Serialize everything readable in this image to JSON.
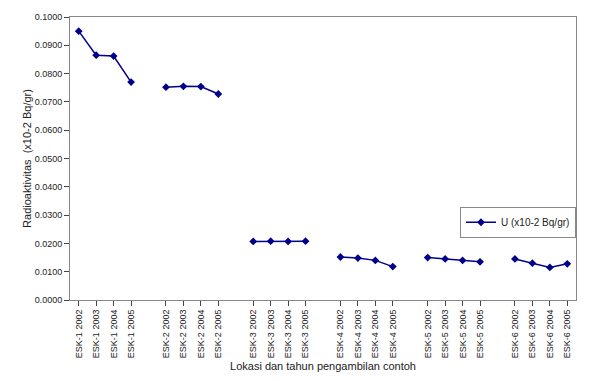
{
  "chart_data": {
    "type": "line",
    "categories": [
      "ESK-1 2002",
      "ESK-1 2003",
      "ESK-1 2004",
      "ESK-1 2005",
      null,
      "ESK-2 2002",
      "ESK-2 2003",
      "ESK-2 2004",
      "ESK-2 2005",
      null,
      "ESK-3 2002",
      "ESK-3 2003",
      "ESK-3 2004",
      "ESK-3 2005",
      null,
      "ESK-4 2002",
      "ESK-4 2003",
      "ESK-4 2004",
      "ESK-4 2005",
      null,
      "ESK-5 2002",
      "ESK-5 2003",
      "ESK-5 2004",
      "ESK-5 2005",
      null,
      "ESK-6 2002",
      "ESK-6 2003",
      "ESK-6 2004",
      "ESK-6 2005"
    ],
    "series": [
      {
        "name": "U (x10-2 Bq/gr)",
        "color": "#00008B",
        "marker": "diamond",
        "line_style": "solid",
        "values": [
          0.095,
          0.0865,
          0.0862,
          0.077,
          null,
          0.0752,
          0.0755,
          0.0754,
          0.0728,
          null,
          0.0207,
          0.0208,
          0.0207,
          0.0208,
          null,
          0.0152,
          0.0148,
          0.014,
          0.0118,
          null,
          0.015,
          0.0145,
          0.014,
          0.0135,
          null,
          0.0145,
          0.013,
          0.0115,
          0.0128
        ]
      }
    ],
    "xlabel": "Lokasi dan tahun pengambilan contoh",
    "ylabel": "Radioaktivitas  (x10-2 Bq/gr)",
    "ylim": [
      0.0,
      0.1
    ],
    "yticks": [
      {
        "value": 0.0,
        "label": "0.0000"
      },
      {
        "value": 0.01,
        "label": "0.0100"
      },
      {
        "value": 0.02,
        "label": "0.0200"
      },
      {
        "value": 0.03,
        "label": "0.0300"
      },
      {
        "value": 0.04,
        "label": "0.0400"
      },
      {
        "value": 0.05,
        "label": "0.0500"
      },
      {
        "value": 0.06,
        "label": "0.0600"
      },
      {
        "value": 0.07,
        "label": "0.0700"
      },
      {
        "value": 0.08,
        "label": "0.0800"
      },
      {
        "value": 0.09,
        "label": "0.0900"
      },
      {
        "value": 0.1,
        "label": "0.1000"
      }
    ],
    "grid": false,
    "legend": "lower right"
  }
}
